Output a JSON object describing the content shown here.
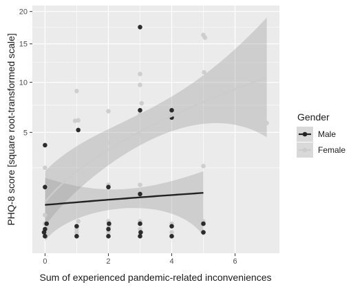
{
  "chart_data": {
    "type": "scatter",
    "xlabel": "Sum of experienced pandemic-related inconveniences",
    "ylabel": "PHQ-8 score [square root-transformed scale]",
    "x_ticks": [
      0,
      2,
      4,
      6
    ],
    "y_ticks": [
      5,
      10,
      15,
      20
    ],
    "xlim": [
      -0.4,
      7.4
    ],
    "ylim": [
      0,
      21
    ],
    "y_scale": "sqrt",
    "grid": true,
    "legend": {
      "title": "Gender",
      "position": "right"
    },
    "series": [
      {
        "name": "Male",
        "color": "#222222",
        "points": [
          [
            0,
            0.1
          ],
          [
            0,
            0.2
          ],
          [
            0.05,
            0.3
          ],
          [
            -0.03,
            0.15
          ],
          [
            0,
            4
          ],
          [
            0,
            1.5
          ],
          [
            1,
            0.1
          ],
          [
            1,
            0.25
          ],
          [
            1.05,
            5.2
          ],
          [
            2,
            0.1
          ],
          [
            2,
            0.2
          ],
          [
            2.02,
            0.3
          ],
          [
            2,
            1.5
          ],
          [
            3,
            0.1
          ],
          [
            3,
            0.3
          ],
          [
            3.02,
            0.15
          ],
          [
            3,
            17.5
          ],
          [
            3,
            7
          ],
          [
            3,
            1.2
          ],
          [
            4,
            0.1
          ],
          [
            4,
            0.25
          ],
          [
            4,
            7
          ],
          [
            4,
            6.3
          ],
          [
            5,
            0.15
          ],
          [
            5,
            0.3
          ]
        ],
        "fit": {
          "x": [
            0,
            5
          ],
          "y": [
            0.8,
            1.25
          ],
          "ci_low": [
            0.05,
            0.1
          ],
          "ci_high": [
            1.95,
            2.3
          ]
        }
      },
      {
        "name": "Female",
        "color": "#cccccc",
        "points": [
          [
            0,
            0.1
          ],
          [
            0,
            0.3
          ],
          [
            0.05,
            0.2
          ],
          [
            0,
            0.5
          ],
          [
            0,
            2.5
          ],
          [
            0.03,
            1.5
          ],
          [
            1,
            0.2
          ],
          [
            1.05,
            0.35
          ],
          [
            1,
            0.15
          ],
          [
            0.95,
            6
          ],
          [
            1.05,
            6.05
          ],
          [
            1,
            9
          ],
          [
            1.2,
            2.2
          ],
          [
            2,
            0.15
          ],
          [
            2,
            0.35
          ],
          [
            2.02,
            0.25
          ],
          [
            2,
            6.9
          ],
          [
            2.05,
            4.2
          ],
          [
            2,
            1.6
          ],
          [
            3,
            0.2
          ],
          [
            3,
            0.35
          ],
          [
            3,
            11
          ],
          [
            3,
            9.7
          ],
          [
            3.05,
            7.7
          ],
          [
            3,
            6.6
          ],
          [
            3,
            4.8
          ],
          [
            3,
            1.6
          ],
          [
            3,
            1.1
          ],
          [
            4,
            0.15
          ],
          [
            4,
            0.3
          ],
          [
            4,
            6.5
          ],
          [
            5,
            0.15
          ],
          [
            5,
            0.35
          ],
          [
            5,
            16.3
          ],
          [
            5.05,
            15.9
          ],
          [
            5.02,
            11.2
          ],
          [
            5,
            2.6
          ],
          [
            7,
            5.8
          ]
        ],
        "fit": {
          "x": [
            0,
            7
          ],
          "y": [
            0.9,
            10.6
          ],
          "ci_low": [
            0.25,
            4.6
          ],
          "ci_high": [
            2.3,
            19
          ]
        }
      }
    ]
  }
}
